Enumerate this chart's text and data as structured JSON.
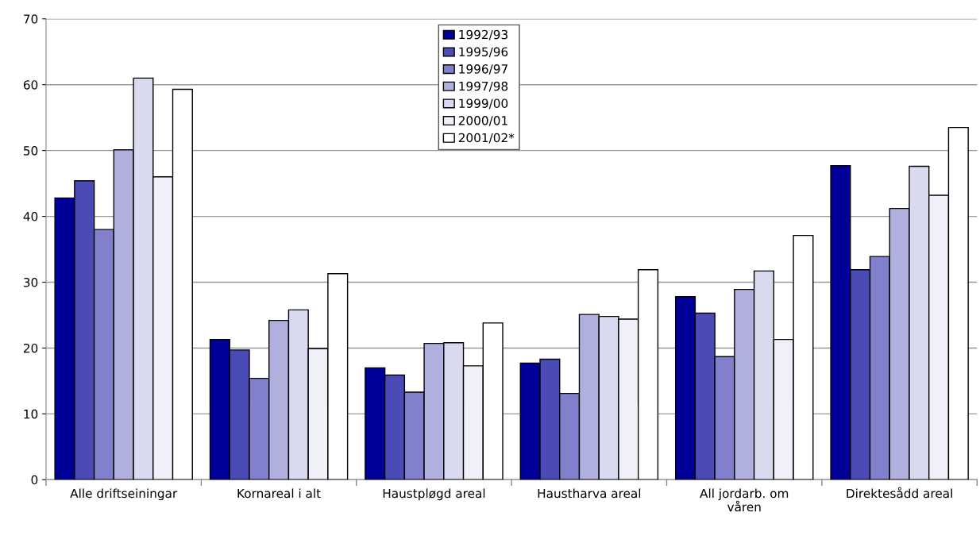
{
  "chart_data": {
    "type": "bar",
    "categories": [
      "Alle driftseiningar",
      "Kornareal i alt",
      "Haustpløgd areal",
      "Haustharva areal",
      "All jordarb. om\nvåren",
      "Direktesådd areal"
    ],
    "series": [
      {
        "name": "1992/93",
        "color": "#000099",
        "values": [
          42.8,
          21.3,
          17.0,
          17.7,
          27.8,
          47.7
        ]
      },
      {
        "name": "1995/96",
        "color": "#4b4bb8",
        "values": [
          45.4,
          19.7,
          15.9,
          18.3,
          25.3,
          31.9
        ]
      },
      {
        "name": "1996/97",
        "color": "#8080cc",
        "values": [
          38.0,
          15.4,
          13.3,
          13.1,
          18.7,
          33.9
        ]
      },
      {
        "name": "1997/98",
        "color": "#b0b0df",
        "values": [
          50.1,
          24.2,
          20.7,
          25.1,
          28.9,
          41.2
        ]
      },
      {
        "name": "1999/00",
        "color": "#d9d9ef",
        "values": [
          61.0,
          25.8,
          20.8,
          24.8,
          31.7,
          47.6
        ]
      },
      {
        "name": "2000/01",
        "color": "#f0f0f9",
        "values": [
          46.0,
          19.9,
          17.3,
          24.4,
          21.3,
          43.2
        ]
      },
      {
        "name": "2001/02*",
        "color": "#ffffff",
        "values": [
          59.3,
          31.3,
          23.8,
          31.9,
          37.1,
          53.5
        ]
      }
    ],
    "ylim": [
      0,
      70
    ],
    "yticks": [
      0,
      10,
      20,
      30,
      40,
      50,
      60,
      70
    ],
    "grid": "y",
    "legend": "top"
  }
}
